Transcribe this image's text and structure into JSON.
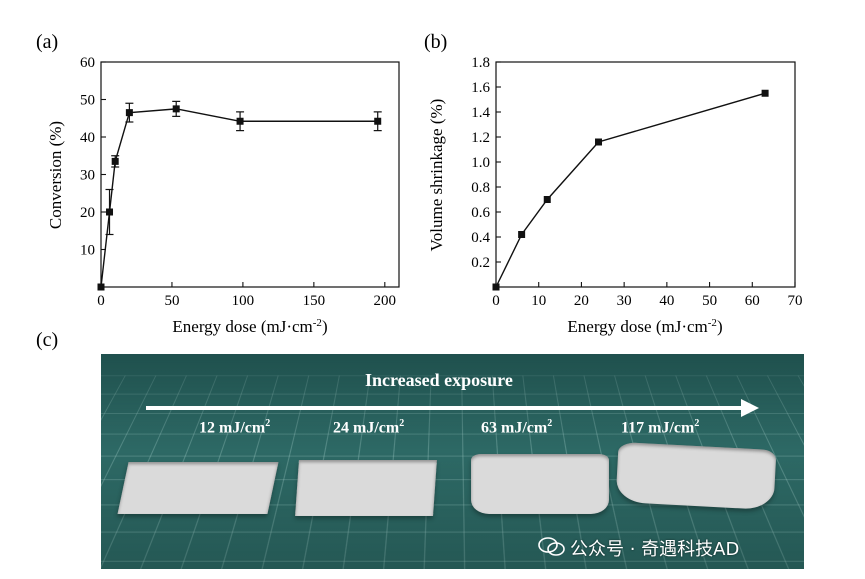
{
  "chart_data": [
    {
      "type": "line",
      "panel_label": "(a)",
      "xlabel": "Energy dose (mJ·cm",
      "xlabel_sup": "-2",
      "xlabel_tail": ")",
      "ylabel": "Conversion (%)",
      "xlim": [
        0,
        210
      ],
      "ylim": [
        0,
        60
      ],
      "xticks": [
        "0",
        "50",
        "100",
        "150",
        "200"
      ],
      "yticks": [
        "10",
        "20",
        "30",
        "40",
        "50",
        "60"
      ],
      "xtick_values": [
        0,
        50,
        100,
        150,
        200
      ],
      "ytick_values": [
        10,
        20,
        30,
        40,
        50,
        60
      ],
      "grid": false,
      "series": [
        {
          "x": [
            0,
            6,
            10,
            20,
            53,
            98,
            195
          ],
          "values": [
            0,
            20,
            33.5,
            46.5,
            47.5,
            44.2,
            44.2
          ],
          "error": [
            0,
            6,
            1.5,
            2.5,
            2.0,
            2.5,
            2.5
          ],
          "marker": "square",
          "color": "#111111"
        }
      ]
    },
    {
      "type": "line",
      "panel_label": "(b)",
      "xlabel": "Energy dose (mJ·cm",
      "xlabel_sup": "-2",
      "xlabel_tail": ")",
      "ylabel": "Volume shrinkage (%)",
      "xlim": [
        0,
        70
      ],
      "ylim": [
        0,
        1.8
      ],
      "xticks": [
        "0",
        "10",
        "20",
        "30",
        "40",
        "50",
        "60",
        "70"
      ],
      "yticks": [
        "0.2",
        "0.4",
        "0.6",
        "0.8",
        "1.0",
        "1.2",
        "1.4",
        "1.6",
        "1.8"
      ],
      "xtick_values": [
        0,
        10,
        20,
        30,
        40,
        50,
        60,
        70
      ],
      "ytick_values": [
        0.2,
        0.4,
        0.6,
        0.8,
        1.0,
        1.2,
        1.4,
        1.6,
        1.8
      ],
      "grid": false,
      "series": [
        {
          "x": [
            0,
            6,
            12,
            24,
            63
          ],
          "values": [
            0,
            0.42,
            0.7,
            1.16,
            1.55
          ],
          "marker": "square",
          "color": "#111111"
        }
      ]
    }
  ],
  "panel_c": {
    "label": "(c)",
    "title": "Increased exposure",
    "doses": [
      {
        "value": "12 mJ/cm",
        "sup": "2"
      },
      {
        "value": "24  mJ/cm",
        "sup": "2"
      },
      {
        "value": "63 mJ/cm",
        "sup": "2"
      },
      {
        "value": "117 mJ/cm",
        "sup": "2"
      }
    ],
    "mat_color": "#2e6a66",
    "sample_color": "#dadada"
  },
  "watermark": {
    "text": "公众号 · 奇遇科技AD",
    "icon": "wechat-icon"
  }
}
